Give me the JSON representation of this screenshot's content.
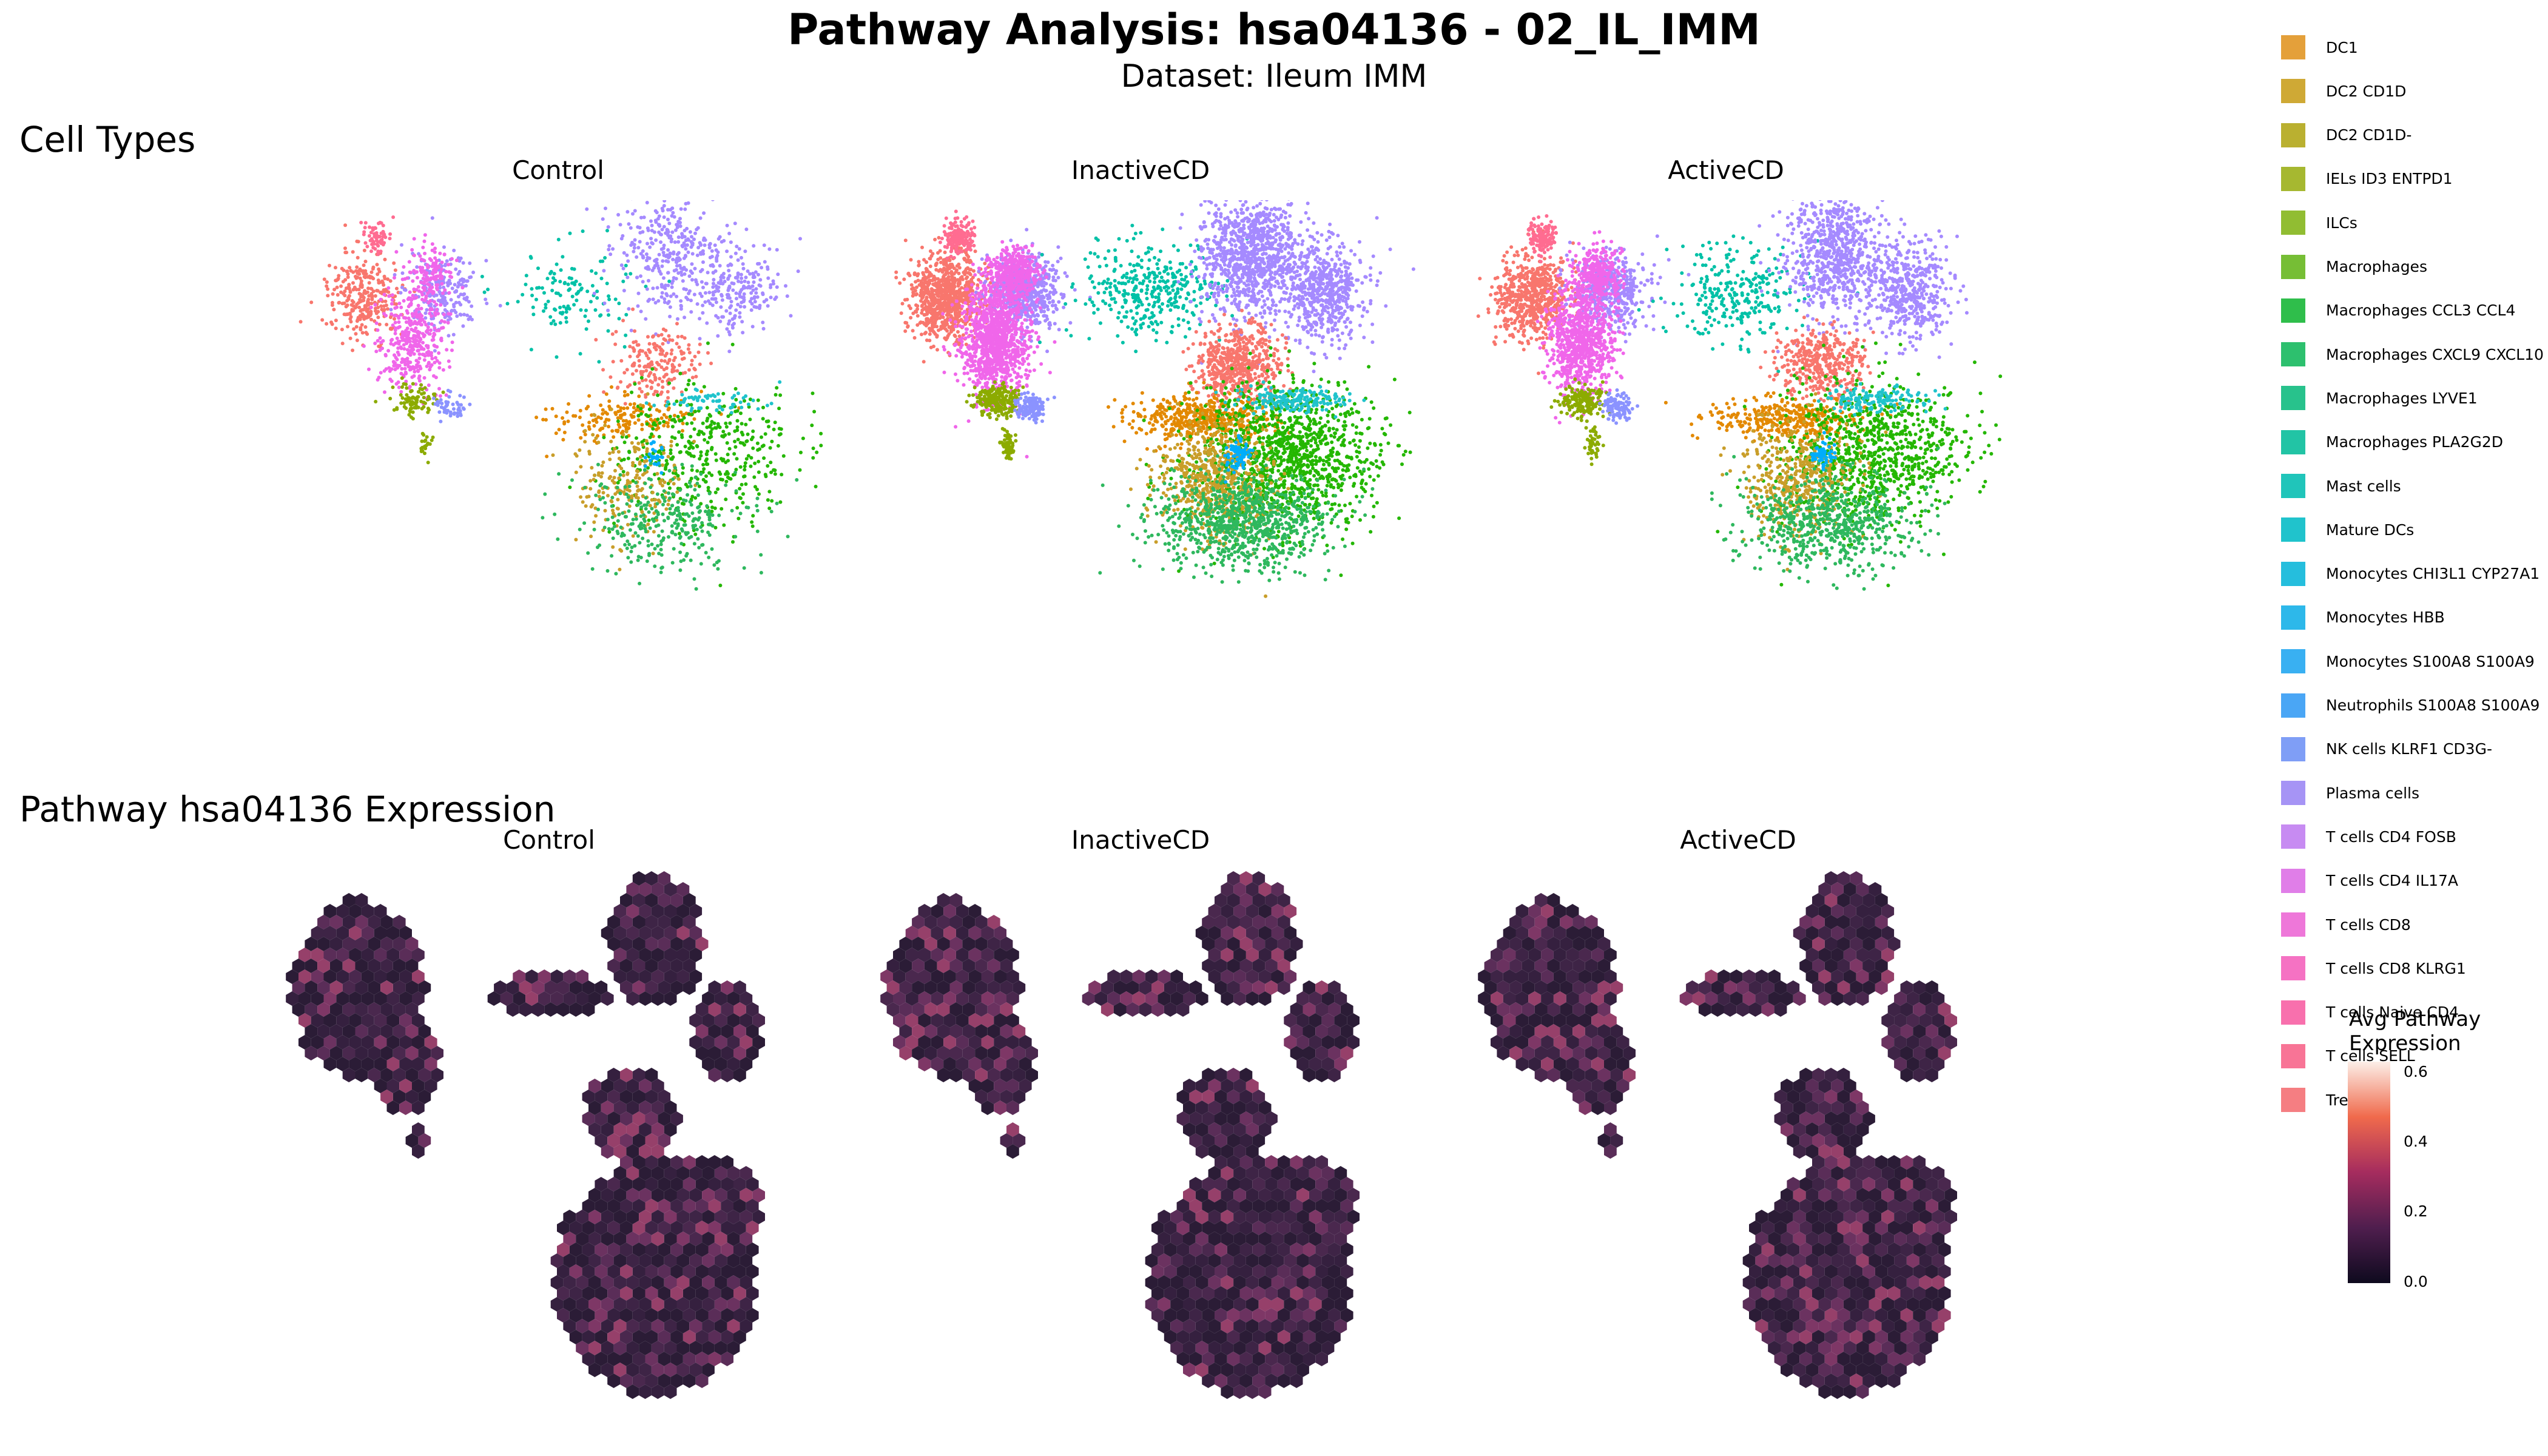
{
  "title": "Pathway Analysis: hsa04136 - 02_IL_IMM",
  "subtitle": "Dataset: Ileum IMM",
  "chart_data": [
    {
      "type": "scatter",
      "title": "Cell Types",
      "facets": [
        "Control",
        "InactiveCD",
        "ActiveCD"
      ],
      "legend": {
        "placement": "right",
        "items": [
          {
            "label": "DC1",
            "color": "#E4A03A"
          },
          {
            "label": "DC2 CD1D",
            "color": "#CFA935"
          },
          {
            "label": "DC2 CD1D-",
            "color": "#BAB030"
          },
          {
            "label": "IELs ID3 ENTPD1",
            "color": "#A6B830"
          },
          {
            "label": "ILCs",
            "color": "#91BD32"
          },
          {
            "label": "Macrophages",
            "color": "#76BE35"
          },
          {
            "label": "Macrophages CCL3 CCL4",
            "color": "#2FBE4B"
          },
          {
            "label": "Macrophages CXCL9 CXCL10",
            "color": "#2DC06E"
          },
          {
            "label": "Macrophages LYVE1",
            "color": "#28C28C"
          },
          {
            "label": "Macrophages PLA2G2D",
            "color": "#22C4A5"
          },
          {
            "label": "Mast cells",
            "color": "#20C5BA"
          },
          {
            "label": "Mature DCs",
            "color": "#20C3CC"
          },
          {
            "label": "Monocytes CHI3L1 CYP27A1",
            "color": "#25BEDD"
          },
          {
            "label": "Monocytes HBB",
            "color": "#2DB8EA"
          },
          {
            "label": "Monocytes S100A8 S100A9",
            "color": "#39B0F2"
          },
          {
            "label": "Neutrophils S100A8 S100A9",
            "color": "#4AA6F5"
          },
          {
            "label": "NK cells KLRF1 CD3G-",
            "color": "#7F9EF6"
          },
          {
            "label": "Plasma cells",
            "color": "#A694F5"
          },
          {
            "label": "T cells CD4 FOSB",
            "color": "#C78BF2"
          },
          {
            "label": "T cells CD4 IL17A",
            "color": "#E07EE8"
          },
          {
            "label": "T cells CD8",
            "color": "#EE77D9"
          },
          {
            "label": "T cells CD8 KLRG1",
            "color": "#F572C3"
          },
          {
            "label": "T cells Naive CD4",
            "color": "#F870AD"
          },
          {
            "label": "T cells SELL",
            "color": "#F87496"
          },
          {
            "label": "Tregs",
            "color": "#F57E82"
          }
        ]
      }
    },
    {
      "type": "heatmap",
      "title": "Pathway hsa04136 Expression",
      "facets": [
        "Control",
        "InactiveCD",
        "ActiveCD"
      ],
      "colorbar": {
        "title_line1": "Avg Pathway",
        "title_line2": "Expression",
        "ticks": [
          "0.6",
          "0.4",
          "0.2",
          "0.0"
        ],
        "range": [
          0,
          0.65
        ]
      }
    }
  ],
  "colors": {
    "rose": "#F8766D",
    "orange": "#E38900",
    "olive": "#8CAB00",
    "green": "#24B700",
    "teal": "#00C1A7",
    "blue": "#00ADFA",
    "periwinkle": "#8B93FF",
    "purple": "#A58AFF",
    "magenta": "#F066EA",
    "pink": "#FF6C91"
  }
}
